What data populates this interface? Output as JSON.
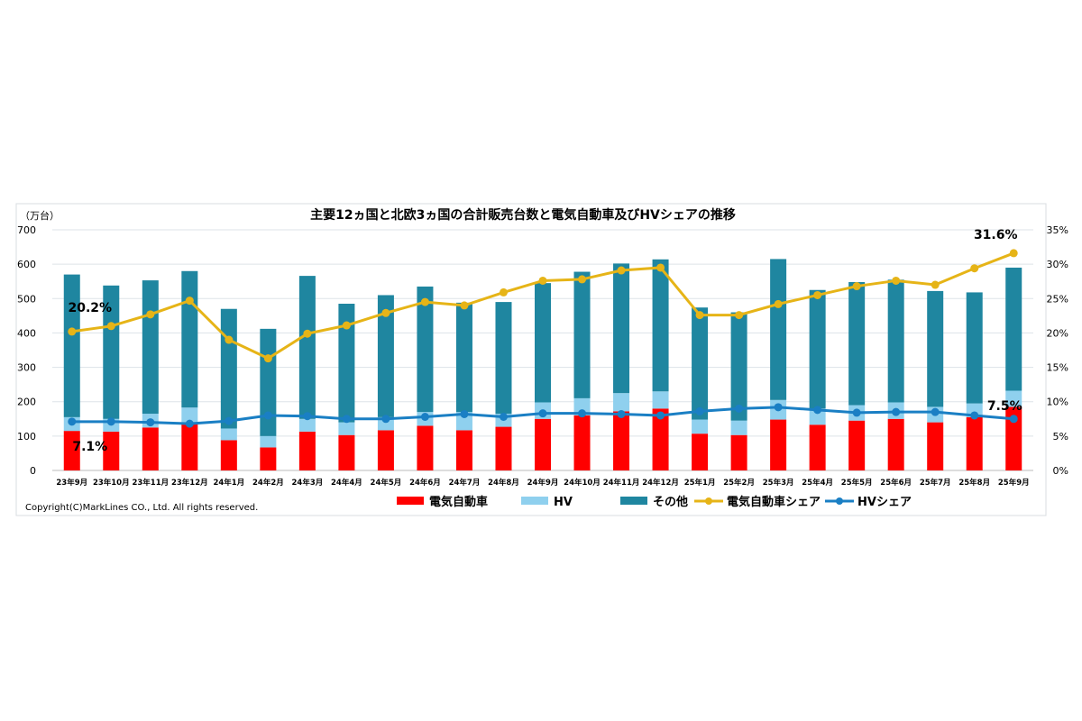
{
  "chart_data": {
    "type": "bar",
    "title": "主要12ヵ国と北欧3ヵ国の合計販売台数と電気自動車及びHVシェアの推移",
    "ylabel": "（万台）",
    "ylim": [
      0,
      700
    ],
    "y2lim": [
      0,
      35
    ],
    "yticks": [
      "0",
      "100",
      "200",
      "300",
      "400",
      "500",
      "600",
      "700"
    ],
    "y2ticks": [
      "0%",
      "5%",
      "10%",
      "15%",
      "20%",
      "25%",
      "30%",
      "35%"
    ],
    "grid": true,
    "legend_position": "bottom",
    "stacked": true,
    "categories": [
      "23年9月",
      "23年10月",
      "23年11月",
      "23年12月",
      "24年1月",
      "24年2月",
      "24年3月",
      "24年4月",
      "24年5月",
      "24年6月",
      "24年7月",
      "24年8月",
      "24年9月",
      "24年10月",
      "24年11月",
      "24年12月",
      "25年1月",
      "25年2月",
      "25年3月",
      "25年4月",
      "25年5月",
      "25年6月",
      "25年7月",
      "25年8月",
      "25年9月"
    ],
    "series": [
      {
        "name": "電気自動車",
        "kind": "bar",
        "axis": "left",
        "color": "#ff0000",
        "values": [
          115,
          113,
          125,
          140,
          88,
          67,
          113,
          103,
          117,
          130,
          117,
          127,
          150,
          160,
          172,
          180,
          107,
          103,
          148,
          133,
          145,
          150,
          140,
          155,
          185
        ]
      },
      {
        "name": "HV",
        "kind": "bar",
        "axis": "left",
        "color": "#8fd0ee",
        "values": [
          40,
          37,
          40,
          43,
          34,
          33,
          37,
          37,
          38,
          40,
          53,
          38,
          48,
          50,
          53,
          50,
          41,
          42,
          57,
          47,
          45,
          48,
          45,
          40,
          47
        ]
      },
      {
        "name": "その他",
        "kind": "bar",
        "axis": "left",
        "color": "#1f86a0",
        "values": [
          415,
          388,
          388,
          397,
          348,
          312,
          416,
          345,
          355,
          365,
          318,
          325,
          347,
          368,
          377,
          384,
          326,
          315,
          410,
          345,
          358,
          357,
          337,
          323,
          358
        ]
      },
      {
        "name": "電気自動車シェア",
        "kind": "line",
        "axis": "right",
        "unit": "%",
        "color": "#e6b417",
        "values": [
          20.2,
          21.0,
          22.7,
          24.7,
          19.0,
          16.3,
          19.9,
          21.1,
          22.9,
          24.5,
          24.0,
          25.9,
          27.6,
          27.8,
          29.1,
          29.5,
          22.6,
          22.6,
          24.2,
          25.5,
          26.8,
          27.6,
          27.0,
          29.4,
          31.6
        ]
      },
      {
        "name": "HVシェア",
        "kind": "line",
        "axis": "right",
        "unit": "%",
        "color": "#1a7fc4",
        "values": [
          7.1,
          7.1,
          7.0,
          6.8,
          7.2,
          8.0,
          7.9,
          7.5,
          7.5,
          7.8,
          8.2,
          7.8,
          8.3,
          8.3,
          8.2,
          8.0,
          8.6,
          9.0,
          9.2,
          8.8,
          8.4,
          8.5,
          8.5,
          8.0,
          7.5
        ]
      }
    ],
    "annotations": [
      "20.2%",
      "7.1%",
      "31.6%",
      "7.5%"
    ]
  },
  "copyright": "Copyright(C)MarkLines CO., Ltd. All rights reserved."
}
